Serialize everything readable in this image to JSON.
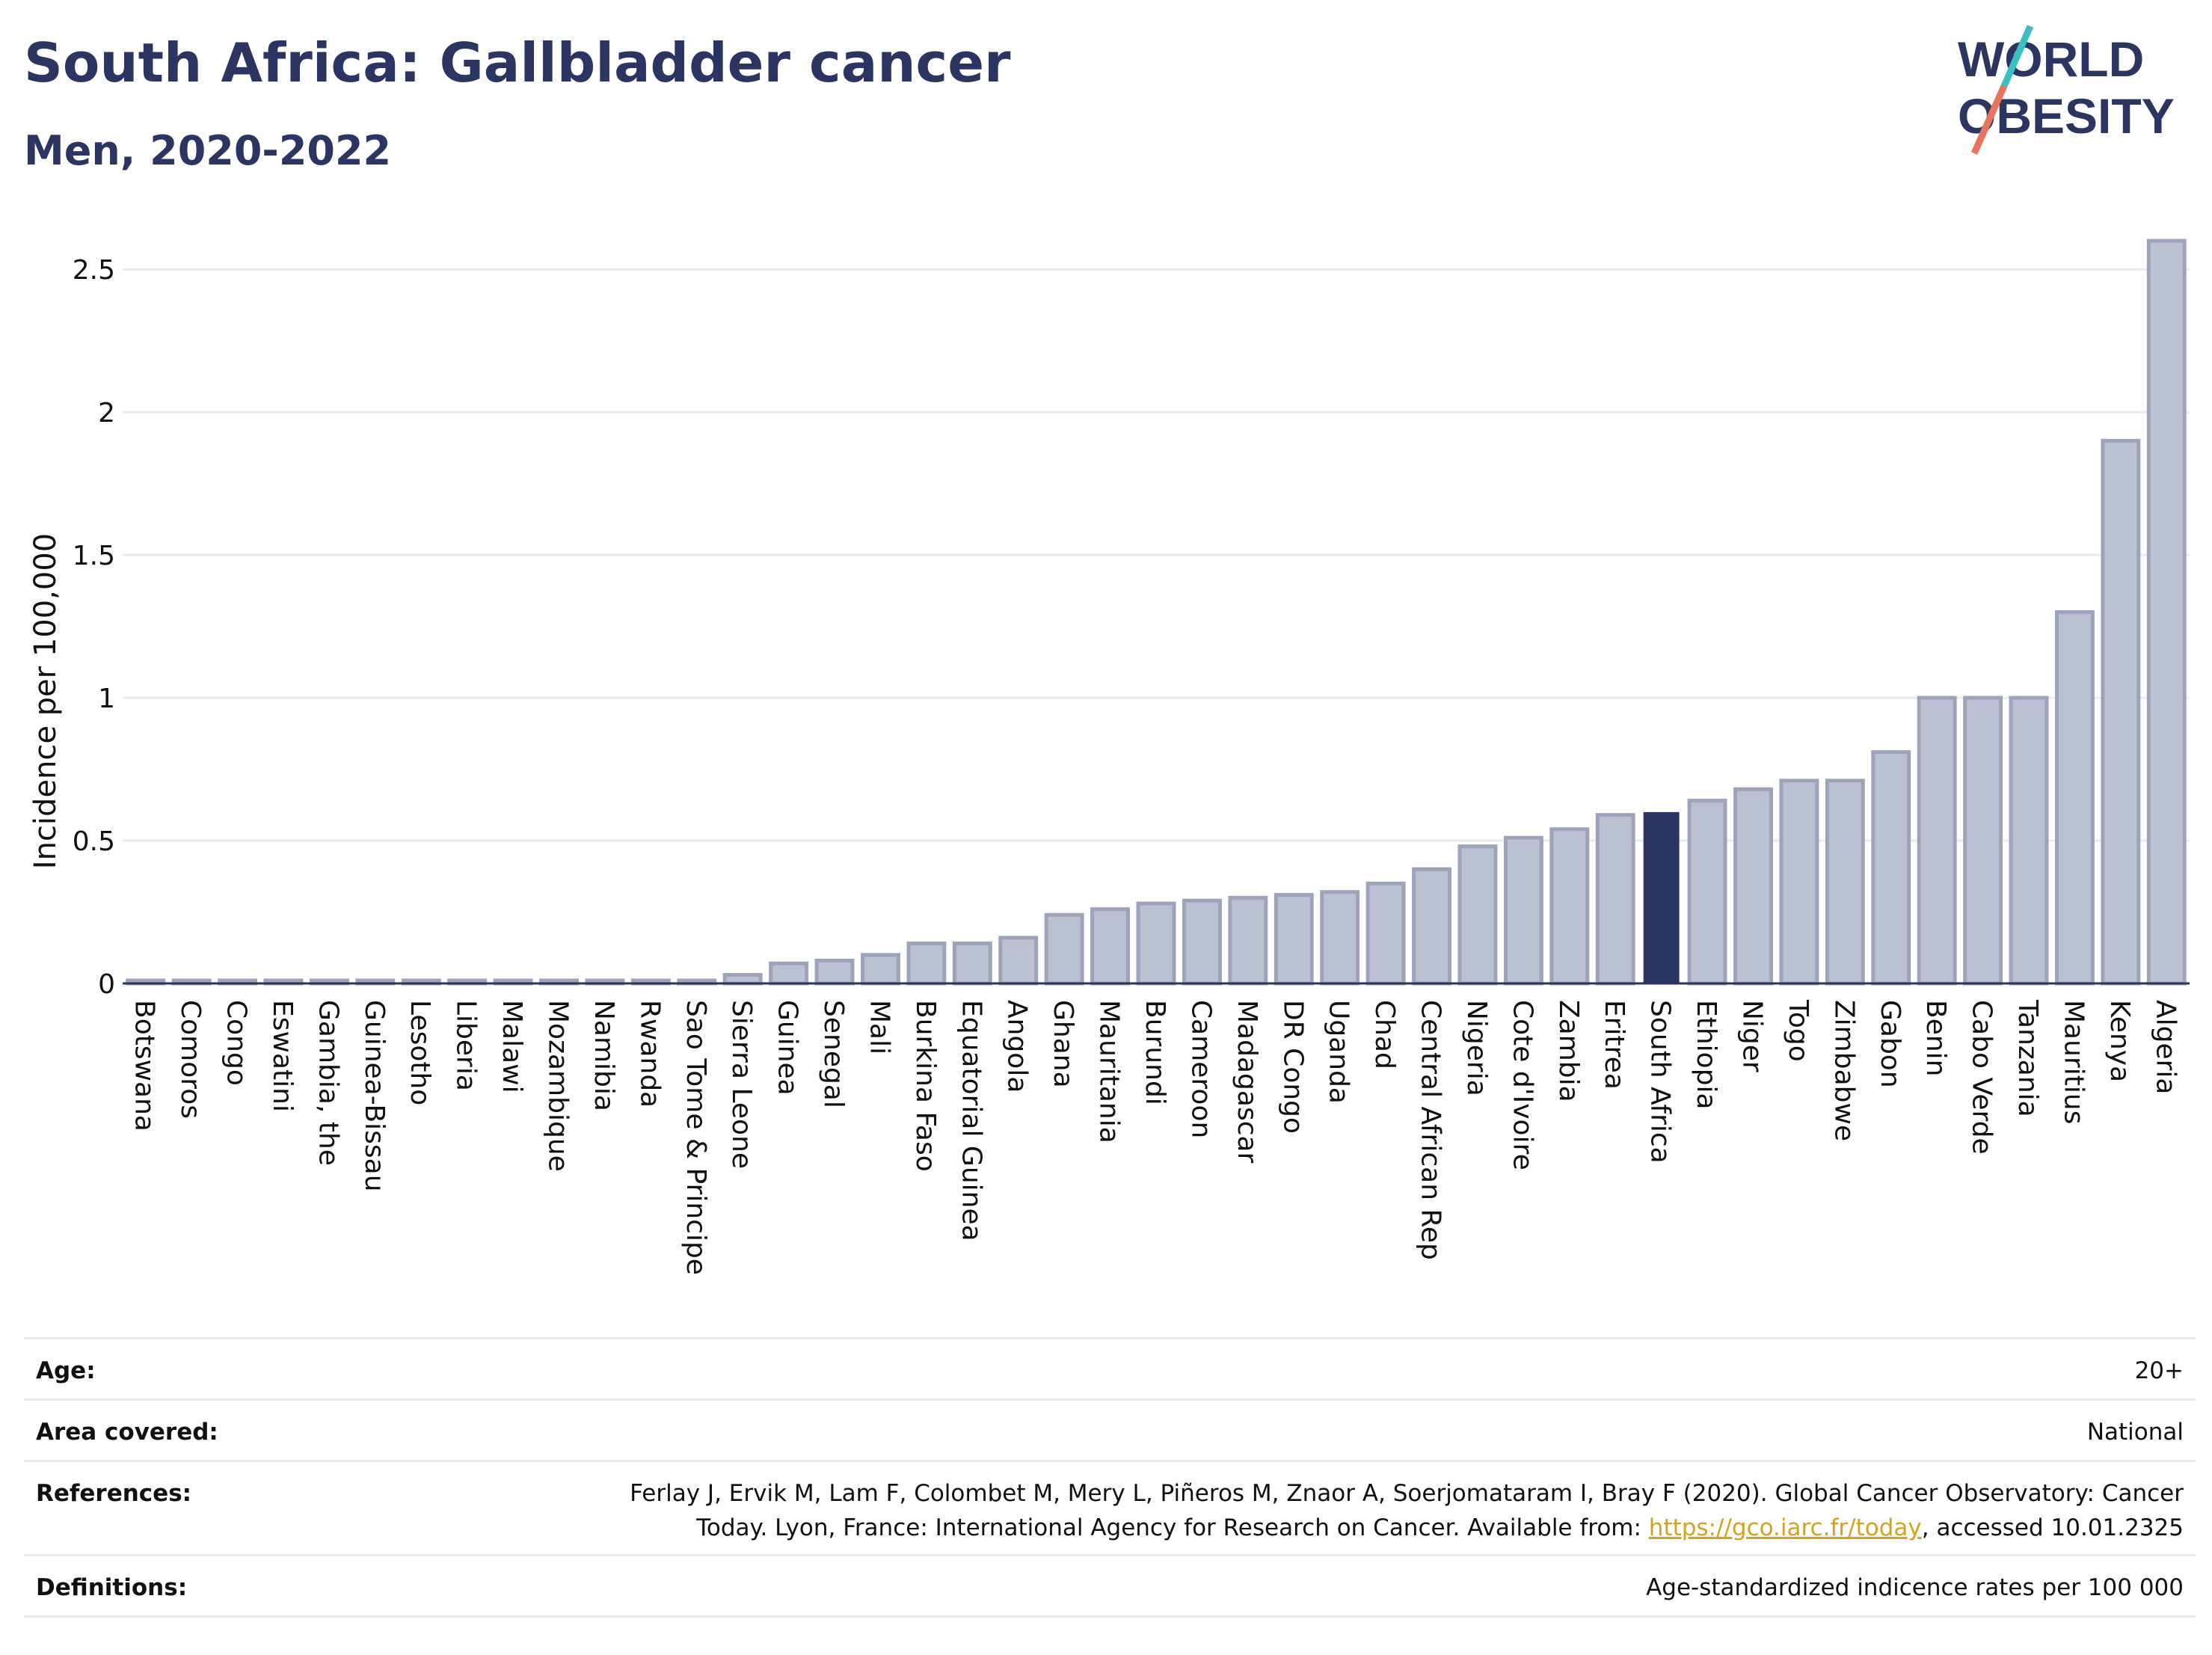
{
  "header": {
    "title": "South Africa: Gallbladder cancer",
    "subtitle": "Men, 2020-2022"
  },
  "logo": {
    "line1": "WORLD",
    "line2": "OBESITY",
    "colors": {
      "text": "#2b3561",
      "teal": "#3cbfc0",
      "coral": "#e8735f"
    }
  },
  "chart_data": {
    "type": "bar",
    "ylabel": "Incidence per 100,000",
    "xlabel": "",
    "ylim": [
      0,
      2.6
    ],
    "yticks": [
      0,
      0.5,
      1,
      1.5,
      2,
      2.5
    ],
    "ytick_labels": [
      "0",
      "0.5",
      "1",
      "1.5",
      "2",
      "2.5"
    ],
    "grid": true,
    "highlight": "South Africa",
    "colors": {
      "bar": "#bcc1d1",
      "bar_edge": "#9da3bb",
      "highlight": "#2b3561",
      "grid": "#e6ebef"
    },
    "categories": [
      "Botswana",
      "Comoros",
      "Congo",
      "Eswatini",
      "Gambia, the",
      "Guinea-Bissau",
      "Lesotho",
      "Liberia",
      "Malawi",
      "Mozambique",
      "Namibia",
      "Rwanda",
      "Sao Tome & Principe",
      "Sierra Leone",
      "Guinea",
      "Senegal",
      "Mali",
      "Burkina Faso",
      "Equatorial Guinea",
      "Angola",
      "Ghana",
      "Mauritania",
      "Burundi",
      "Cameroon",
      "Madagascar",
      "DR Congo",
      "Uganda",
      "Chad",
      "Central African Rep",
      "Nigeria",
      "Cote d'Ivoire",
      "Zambia",
      "Eritrea",
      "South Africa",
      "Ethiopia",
      "Niger",
      "Togo",
      "Zimbabwe",
      "Gabon",
      "Benin",
      "Cabo Verde",
      "Tanzania",
      "Mauritius",
      "Kenya",
      "Algeria"
    ],
    "values": [
      0.01,
      0.01,
      0.01,
      0.01,
      0.01,
      0.01,
      0.01,
      0.01,
      0.01,
      0.01,
      0.01,
      0.01,
      0.01,
      0.03,
      0.07,
      0.08,
      0.1,
      0.14,
      0.14,
      0.16,
      0.24,
      0.26,
      0.28,
      0.29,
      0.3,
      0.31,
      0.32,
      0.35,
      0.4,
      0.48,
      0.51,
      0.54,
      0.59,
      0.6,
      0.64,
      0.68,
      0.71,
      0.71,
      0.81,
      1.0,
      1.0,
      1.0,
      1.3,
      1.9,
      2.6
    ]
  },
  "info": {
    "age": {
      "label": "Age:",
      "value": "20+"
    },
    "area": {
      "label": "Area covered:",
      "value": "National"
    },
    "references": {
      "label": "References:",
      "line1": "Ferlay J, Ervik M, Lam F, Colombet M, Mery L, Piñeros M, Znaor A, Soerjomataram I, Bray F (2020). Global Cancer Observatory: Cancer",
      "line2_prefix": "Today. Lyon, France: International Agency for Research on Cancer. Available from: ",
      "link": "https://gco.iarc.fr/today",
      "line2_suffix": ", accessed 10.01.2325"
    },
    "definitions": {
      "label": "Definitions:",
      "value": "Age-standardized indicence rates per 100 000"
    }
  }
}
